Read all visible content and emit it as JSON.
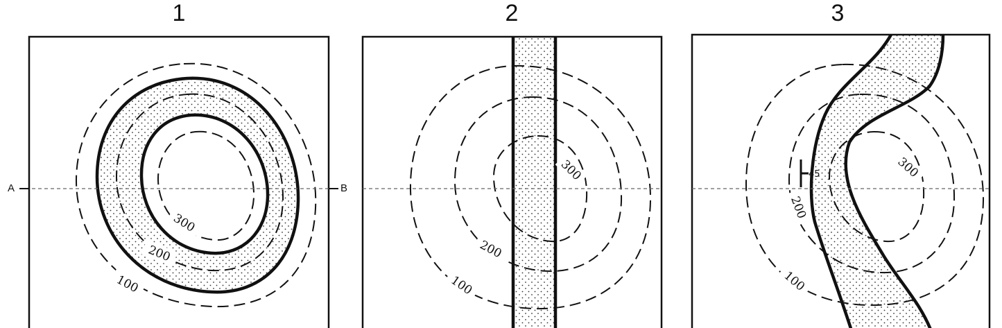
{
  "panels": [
    {
      "title": "1"
    },
    {
      "title": "2"
    },
    {
      "title": "3"
    }
  ],
  "section_line": {
    "start_label": "A",
    "end_label": "B"
  },
  "contour_labels": {
    "c100": "100",
    "c200": "200",
    "c300": "300"
  },
  "dip_label": "45"
}
